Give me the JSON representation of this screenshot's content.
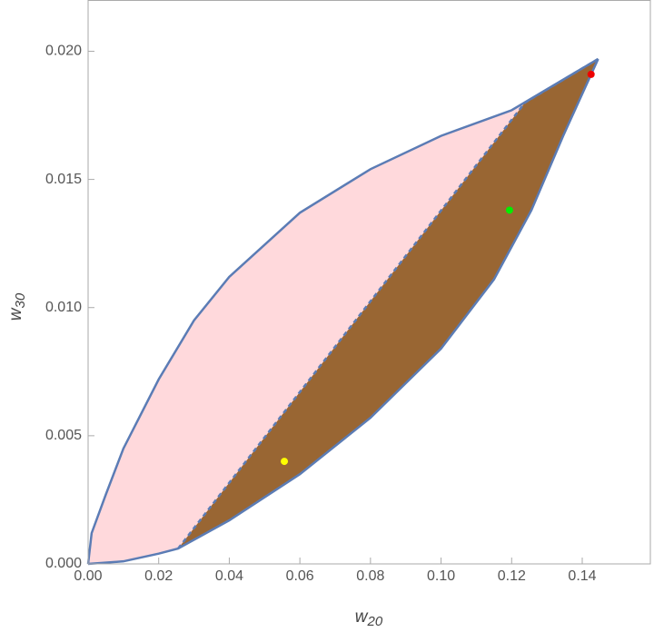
{
  "chart_data": {
    "type": "region",
    "xlabel": "w",
    "xlabel_sub": "20",
    "ylabel": "w",
    "ylabel_sub": "30",
    "xlim": [
      0,
      0.1593
    ],
    "ylim": [
      0,
      0.022
    ],
    "xticks": [
      {
        "value": 0,
        "label": "0.00"
      },
      {
        "value": 0.02,
        "label": "0.02"
      },
      {
        "value": 0.04,
        "label": "0.04"
      },
      {
        "value": 0.06,
        "label": "0.06"
      },
      {
        "value": 0.08,
        "label": "0.08"
      },
      {
        "value": 0.1,
        "label": "0.10"
      },
      {
        "value": 0.12,
        "label": "0.12"
      },
      {
        "value": 0.14,
        "label": "0.14"
      }
    ],
    "yticks": [
      {
        "value": 0,
        "label": "0.000"
      },
      {
        "value": 0.005,
        "label": "0.005"
      },
      {
        "value": 0.01,
        "label": "0.010"
      },
      {
        "value": 0.015,
        "label": "0.015"
      },
      {
        "value": 0.02,
        "label": "0.020"
      }
    ],
    "fill_color": "#ffd9dc",
    "series": [
      {
        "color": "#5b7cb5",
        "x": [
          0,
          0.001,
          0.005,
          0.01,
          0.02,
          0.03,
          0.04,
          0.06,
          0.08,
          0.1,
          0.12,
          0.1445
        ],
        "values": [
          0,
          0.0012,
          0.0027,
          0.0045,
          0.0072,
          0.0095,
          0.0112,
          0.0137,
          0.0154,
          0.0167,
          0.0177,
          0.0197
        ]
      },
      {
        "color": "#5b7cb5",
        "x": [
          0,
          0.01,
          0.02,
          0.0255,
          0.04,
          0.06,
          0.08,
          0.1,
          0.115,
          0.1256,
          0.1346,
          0.1445
        ],
        "values": [
          0,
          0.0001,
          0.0004,
          0.0006,
          0.0017,
          0.0035,
          0.0057,
          0.0084,
          0.0111,
          0.0138,
          0.0167,
          0.0197
        ]
      }
    ],
    "regions": [
      {
        "color": "#996633",
        "x": [
          0.0255,
          0.1238,
          0.1445,
          0.1346,
          0.1256,
          0.115,
          0.1,
          0.08,
          0.06,
          0.04
        ],
        "values": [
          0.0006,
          0.018,
          0.0197,
          0.0167,
          0.0138,
          0.0111,
          0.0084,
          0.0057,
          0.0035,
          0.0017
        ]
      }
    ],
    "dashed": [
      {
        "color": "#5b7cb5",
        "x": [
          0.0255,
          0.1238,
          0.1445
        ],
        "values": [
          0.0006,
          0.018,
          0.0197
        ]
      }
    ],
    "points": [
      {
        "color": "#ffff00",
        "x": 0.0556,
        "value": 0.004
      },
      {
        "color": "#00ee00",
        "x": 0.1194,
        "value": 0.0138
      },
      {
        "color": "#ee0000",
        "x": 0.1425,
        "value": 0.0191
      }
    ]
  }
}
